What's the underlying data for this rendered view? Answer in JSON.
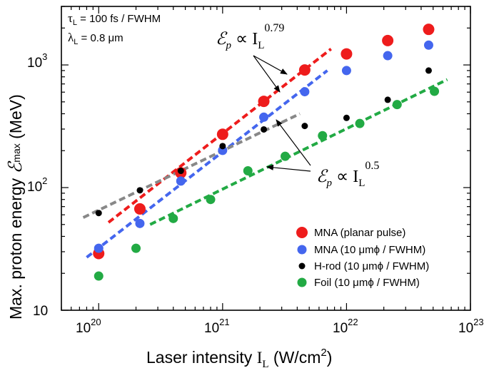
{
  "chart_data": {
    "type": "scatter",
    "xscale": "log",
    "yscale": "log",
    "xlim": [
      5e+19,
      1e+23
    ],
    "ylim": [
      10,
      3000
    ],
    "x_tick_labels": [
      {
        "x": 1e+20,
        "base": "10",
        "exp": "20"
      },
      {
        "x": 1e+21,
        "base": "10",
        "exp": "21"
      },
      {
        "x": 1e+22,
        "base": "10",
        "exp": "22"
      },
      {
        "x": 1e+23,
        "base": "10",
        "exp": "23"
      }
    ],
    "y_tick_labels": [
      {
        "y": 10,
        "base": "10",
        "exp": ""
      },
      {
        "y": 100,
        "base": "10",
        "exp": "2"
      },
      {
        "y": 1000,
        "base": "10",
        "exp": "3"
      }
    ],
    "xlabel": {
      "text": "Laser intensity ",
      "sym": "I",
      "sub": "L",
      "unit_open": " (W/cm",
      "unit_exp": "2",
      "unit_close": ")"
    },
    "ylabel": {
      "text": "Max. proton energy ",
      "sym": "ℰ",
      "sub": "max",
      "unit": " (MeV)"
    },
    "params": [
      {
        "sym": "τ",
        "sub": "L",
        "text": " = 100 fs / FWHM"
      },
      {
        "sym": "λ",
        "sub": "L",
        "text": " = 0.8 μm"
      }
    ],
    "series": [
      {
        "name": "MNA (planar pulse)",
        "color": "#ee1c1c",
        "marker": "large",
        "x": [
          1e+20,
          2.15e+20,
          4.6e+20,
          1e+21,
          2.15e+21,
          4.6e+21,
          1e+22,
          2.15e+22,
          4.6e+22
        ],
        "y": [
          29,
          67,
          132,
          272,
          505,
          910,
          1230,
          1580,
          1950
        ]
      },
      {
        "name": "MNA (10 μmϕ / FWHM)",
        "color": "#4466ee",
        "marker": "medium",
        "x": [
          1e+20,
          2.15e+20,
          4.6e+20,
          1e+21,
          2.15e+21,
          4.6e+21,
          1e+22,
          2.15e+22,
          4.6e+22
        ],
        "y": [
          32,
          51,
          113,
          201,
          375,
          605,
          900,
          1190,
          1450
        ]
      },
      {
        "name": "H-rod (10 μmϕ / FWHM)",
        "color": "#000000",
        "marker": "small",
        "x": [
          1e+20,
          2.15e+20,
          4.6e+20,
          1e+21,
          2.15e+21,
          4.6e+21,
          1e+22,
          2.15e+22,
          4.6e+22
        ],
        "y": [
          62,
          95,
          137,
          218,
          298,
          318,
          370,
          520,
          900
        ]
      },
      {
        "name": "Foil (10 μmϕ / FWHM)",
        "color": "#22aa44",
        "marker": "medium",
        "x": [
          1e+20,
          2e+20,
          4e+20,
          8e+20,
          1.6e+21,
          3.2e+21,
          6.4e+21,
          1.28e+22,
          2.56e+22,
          5.12e+22
        ],
        "y": [
          19,
          32,
          56,
          80,
          137,
          180,
          265,
          333,
          475,
          610
        ]
      }
    ],
    "fit_lines": [
      {
        "color": "#ee1c1c",
        "x": [
          1.2e+20,
          7.5e+21
        ],
        "y": [
          52,
          1350
        ]
      },
      {
        "color": "#4466ee",
        "x": [
          8e+19,
          7e+21
        ],
        "y": [
          27,
          900
        ]
      },
      {
        "color": "#888888",
        "x": [
          7.5e+19,
          4.2e+21
        ],
        "y": [
          57,
          400
        ]
      },
      {
        "color": "#22aa44",
        "x": [
          2.6e+20,
          6.5e+22
        ],
        "y": [
          50,
          760
        ]
      }
    ],
    "annotations": [
      {
        "sym": "ℰ",
        "sub": "p",
        "rel": " ∝ ",
        "var": "I",
        "var_sub": "L",
        "exp": "0.79"
      },
      {
        "sym": "ℰ",
        "sub": "p",
        "rel": " ∝ ",
        "var": "I",
        "var_sub": "L",
        "exp": "0.5"
      }
    ]
  }
}
